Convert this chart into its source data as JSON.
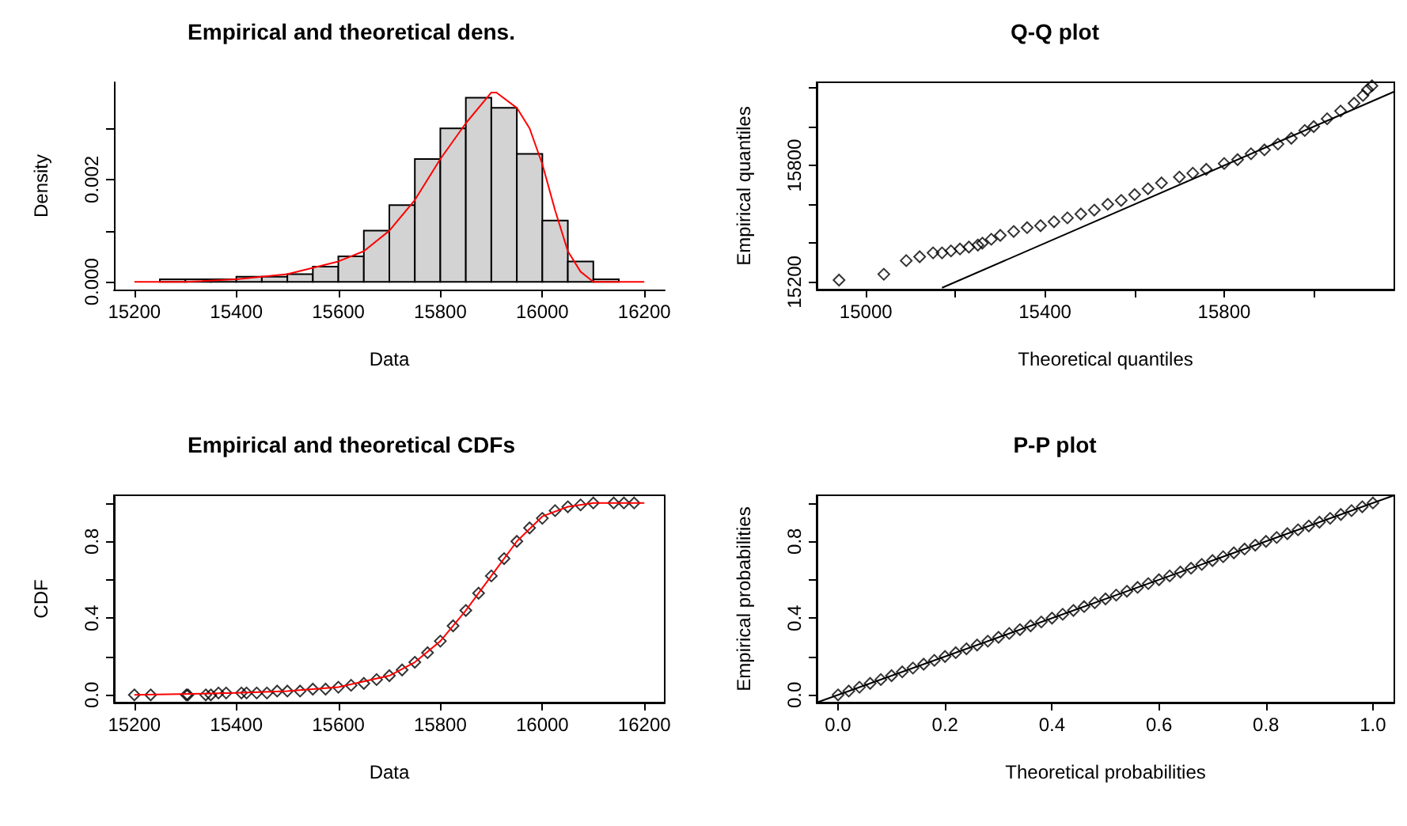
{
  "chart_data": [
    {
      "type": "histogram",
      "title": "Empirical and theoretical dens.",
      "xlabel": "Data",
      "ylabel": "Density",
      "bins": [
        15250,
        15300,
        15350,
        15400,
        15450,
        15500,
        15550,
        15600,
        15650,
        15700,
        15750,
        15800,
        15850,
        15900,
        15950,
        16000,
        16050,
        16100,
        16150
      ],
      "xlim": [
        15160,
        16240
      ],
      "xticks": [
        15200,
        15400,
        15600,
        15800,
        16000,
        16200
      ],
      "ylim": [
        -0.00015,
        0.0039
      ],
      "yticks": [
        {
          "value": 0,
          "label": "0.000"
        },
        {
          "value": 0.001,
          "label": null
        },
        {
          "value": 0.002,
          "label": "0.002"
        },
        {
          "value": 0.003,
          "label": null
        }
      ],
      "series": [
        {
          "type": "histogram",
          "color": "#d3d3d3",
          "values": [
            5e-05,
            5e-05,
            5e-05,
            0.0001,
            0.0001,
            0.00015,
            0.0003,
            0.0005,
            0.001,
            0.0015,
            0.0024,
            0.003,
            0.0036,
            0.0034,
            0.0025,
            0.0012,
            0.0004,
            5e-05
          ]
        },
        {
          "type": "line",
          "color": "#ff0000",
          "marker": "none",
          "x": [
            15200,
            15300,
            15400,
            15500,
            15600,
            15650,
            15700,
            15750,
            15800,
            15850,
            15900,
            15910,
            15950,
            15975,
            16000,
            16025,
            16050,
            16075,
            16100,
            16150,
            16200
          ],
          "values": [
            0,
            0,
            5e-05,
            0.00015,
            0.0004,
            0.0006,
            0.001,
            0.0016,
            0.0024,
            0.0031,
            0.0037,
            0.0037,
            0.0034,
            0.003,
            0.0023,
            0.0014,
            0.0006,
            0.0002,
            0,
            0,
            0
          ]
        }
      ]
    },
    {
      "type": "scatter",
      "title": "Q-Q plot",
      "xlabel": "Theoretical quantiles",
      "ylabel": "Empirical quantiles",
      "xlim": [
        14890,
        16180
      ],
      "xticks": [
        15000,
        {
          "value": 15200,
          "label": null
        },
        15400,
        {
          "value": 15600,
          "label": null
        },
        15800,
        {
          "value": 16000,
          "label": null
        }
      ],
      "ylim": [
        15161,
        16228
      ],
      "yticks": [
        15200,
        {
          "value": 15400,
          "label": null
        },
        {
          "value": 15600,
          "label": null
        },
        15800,
        {
          "value": 16000,
          "label": null
        },
        {
          "value": 16200,
          "label": null
        }
      ],
      "series": [
        {
          "type": "scatter",
          "color": "#000000",
          "marker": "diamond",
          "x": [
            14940,
            15040,
            15090,
            15120,
            15150,
            15170,
            15190,
            15210,
            15230,
            15250,
            15260,
            15280,
            15300,
            15330,
            15360,
            15390,
            15420,
            15450,
            15480,
            15510,
            15540,
            15570,
            15600,
            15630,
            15660,
            15700,
            15730,
            15760,
            15800,
            15830,
            15860,
            15890,
            15920,
            15950,
            15980,
            16000,
            16030,
            16060,
            16090,
            16110,
            16120,
            16130
          ],
          "values": [
            15210,
            15240,
            15310,
            15330,
            15350,
            15350,
            15360,
            15370,
            15380,
            15390,
            15400,
            15420,
            15440,
            15460,
            15480,
            15490,
            15510,
            15530,
            15550,
            15570,
            15600,
            15620,
            15650,
            15680,
            15710,
            15740,
            15760,
            15780,
            15810,
            15830,
            15860,
            15880,
            15910,
            15940,
            15980,
            16000,
            16040,
            16080,
            16120,
            16160,
            16190,
            16210
          ]
        },
        {
          "type": "line",
          "color": "#000000",
          "marker": "none",
          "x": [
            15170,
            16180
          ],
          "values": [
            15170,
            16180
          ]
        }
      ]
    },
    {
      "type": "scatter",
      "title": "Empirical and theoretical CDFs",
      "xlabel": "Data",
      "ylabel": "CDF",
      "xlim": [
        15160,
        16240
      ],
      "xticks": [
        15200,
        15400,
        15600,
        15800,
        16000,
        16200
      ],
      "ylim": [
        -0.04,
        1.04
      ],
      "yticks": [
        {
          "value": 0,
          "label": "0.0"
        },
        {
          "value": 0.2,
          "label": null
        },
        0.4,
        {
          "value": 0.6,
          "label": null
        },
        0.8,
        {
          "value": 1,
          "label": null
        }
      ],
      "series": [
        {
          "type": "scatter",
          "color": "#000000",
          "marker": "diamond",
          "x": [
            15200,
            15232,
            15302,
            15305,
            15340,
            15350,
            15365,
            15380,
            15410,
            15420,
            15440,
            15460,
            15480,
            15500,
            15525,
            15550,
            15575,
            15600,
            15625,
            15650,
            15675,
            15700,
            15725,
            15750,
            15775,
            15800,
            15825,
            15850,
            15875,
            15900,
            15925,
            15950,
            15975,
            16000,
            16025,
            16050,
            16075,
            16100,
            16140,
            16160,
            16180
          ],
          "values": [
            0,
            0,
            0,
            0,
            0,
            0,
            0.01,
            0.01,
            0.01,
            0.01,
            0.01,
            0.01,
            0.02,
            0.02,
            0.02,
            0.03,
            0.03,
            0.04,
            0.05,
            0.06,
            0.08,
            0.1,
            0.13,
            0.17,
            0.22,
            0.28,
            0.36,
            0.44,
            0.53,
            0.62,
            0.71,
            0.8,
            0.87,
            0.92,
            0.96,
            0.98,
            0.99,
            1,
            1,
            1,
            1
          ]
        },
        {
          "type": "line",
          "color": "#ff0000",
          "marker": "none",
          "x": [
            15200,
            15400,
            15500,
            15600,
            15700,
            15750,
            15800,
            15850,
            15900,
            15950,
            16000,
            16050,
            16100,
            16200
          ],
          "values": [
            0,
            0.01,
            0.02,
            0.04,
            0.1,
            0.17,
            0.28,
            0.44,
            0.62,
            0.8,
            0.93,
            0.98,
            1,
            1
          ]
        }
      ]
    },
    {
      "type": "scatter",
      "title": "P-P plot",
      "xlabel": "Theoretical probabilities",
      "ylabel": "Empirical probabilities",
      "xlim": [
        -0.04,
        1.04
      ],
      "xticks": [
        {
          "value": 0,
          "label": "0.0"
        },
        0.2,
        0.4,
        0.6,
        0.8,
        {
          "value": 1,
          "label": "1.0"
        }
      ],
      "ylim": [
        -0.04,
        1.04
      ],
      "yticks": [
        {
          "value": 0,
          "label": "0.0"
        },
        {
          "value": 0.2,
          "label": null
        },
        0.4,
        {
          "value": 0.6,
          "label": null
        },
        0.8,
        {
          "value": 1,
          "label": null
        }
      ],
      "series": [
        {
          "type": "scatter",
          "color": "#000000",
          "marker": "diamond",
          "x": [
            0,
            0.02,
            0.04,
            0.06,
            0.08,
            0.1,
            0.12,
            0.14,
            0.16,
            0.18,
            0.2,
            0.22,
            0.24,
            0.26,
            0.28,
            0.3,
            0.32,
            0.34,
            0.36,
            0.38,
            0.4,
            0.42,
            0.44,
            0.46,
            0.48,
            0.5,
            0.52,
            0.54,
            0.56,
            0.58,
            0.6,
            0.62,
            0.64,
            0.66,
            0.68,
            0.7,
            0.72,
            0.74,
            0.76,
            0.78,
            0.8,
            0.82,
            0.84,
            0.86,
            0.88,
            0.9,
            0.92,
            0.94,
            0.96,
            0.98,
            1
          ],
          "values": [
            0,
            0.02,
            0.04,
            0.06,
            0.08,
            0.1,
            0.12,
            0.14,
            0.16,
            0.18,
            0.2,
            0.22,
            0.24,
            0.26,
            0.28,
            0.3,
            0.32,
            0.34,
            0.36,
            0.38,
            0.4,
            0.42,
            0.44,
            0.46,
            0.48,
            0.5,
            0.52,
            0.54,
            0.56,
            0.58,
            0.6,
            0.62,
            0.64,
            0.66,
            0.68,
            0.7,
            0.72,
            0.74,
            0.76,
            0.78,
            0.8,
            0.82,
            0.84,
            0.86,
            0.88,
            0.9,
            0.92,
            0.94,
            0.96,
            0.98,
            1
          ]
        },
        {
          "type": "line",
          "color": "#000000",
          "marker": "none",
          "x": [
            -0.04,
            1.04
          ],
          "values": [
            -0.04,
            1.04
          ]
        }
      ]
    }
  ]
}
